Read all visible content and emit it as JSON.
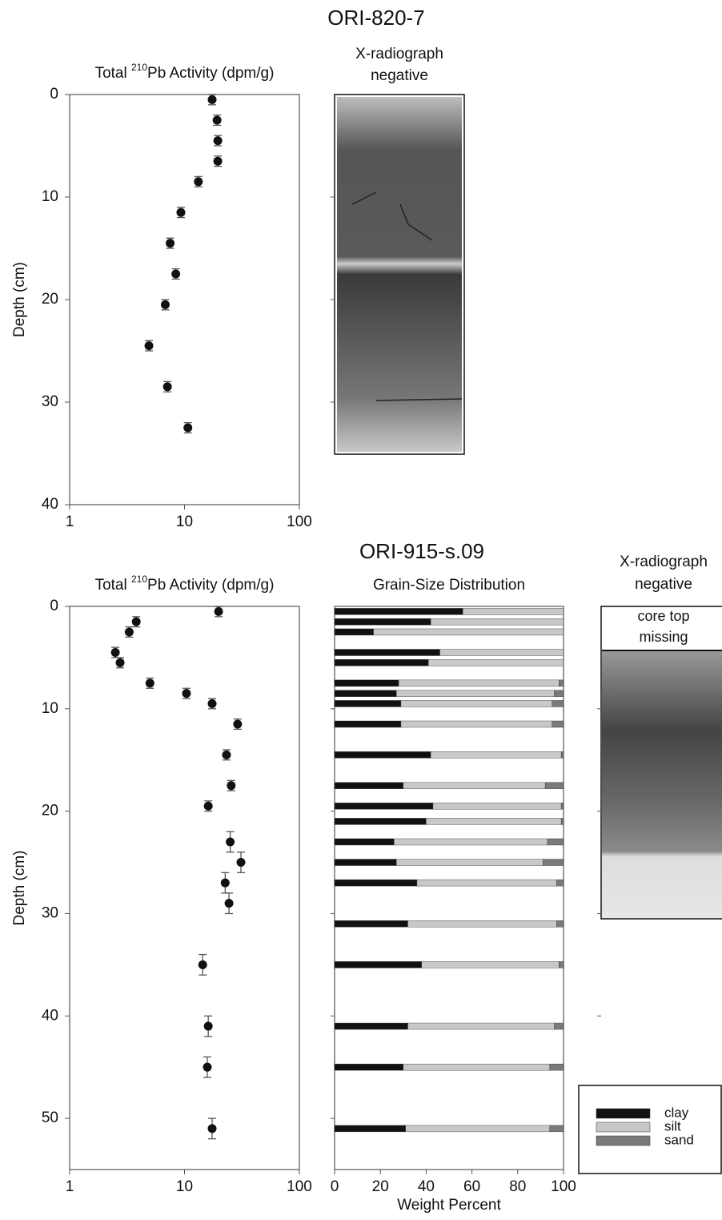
{
  "figure": {
    "top_title": "ORI-820-7",
    "bottom_title": "ORI-915-s.09",
    "top_radiograph_label": [
      "X-radiograph",
      "negative"
    ],
    "bottom_radiograph_label": [
      "X-radiograph",
      "negative"
    ],
    "core_top_note": [
      "core top",
      "missing"
    ]
  },
  "chart_data": [
    {
      "type": "scatter",
      "title": [
        "Total ",
        "210",
        "Pb Activity (dpm/g)"
      ],
      "ylabel": "Depth (cm)",
      "xscale": "log",
      "xlim": [
        1,
        100
      ],
      "xticks": [
        1,
        10,
        100
      ],
      "ylim": [
        0,
        40
      ],
      "yticks": [
        0,
        10,
        20,
        30,
        40
      ],
      "color": "#111111",
      "x": [
        17.4,
        19.2,
        19.5,
        19.5,
        13.2,
        9.3,
        7.5,
        8.4,
        6.8,
        4.9,
        7.1,
        10.7
      ],
      "y": [
        0.5,
        2.5,
        4.5,
        6.5,
        8.5,
        11.5,
        14.5,
        17.5,
        20.5,
        24.5,
        28.5,
        32.5
      ],
      "y_err": [
        0.5,
        0.5,
        0.5,
        0.5,
        0.5,
        0.5,
        0.5,
        0.5,
        0.5,
        0.5,
        0.5,
        0.5
      ]
    },
    {
      "type": "scatter",
      "title": [
        "Total ",
        "210",
        "Pb Activity (dpm/g)"
      ],
      "ylabel": "Depth (cm)",
      "xscale": "log",
      "xlim": [
        1,
        100
      ],
      "xticks": [
        1,
        10,
        100
      ],
      "ylim": [
        0,
        55
      ],
      "yticks": [
        0,
        10,
        20,
        30,
        40,
        50
      ],
      "color": "#111111",
      "x": [
        19.8,
        3.8,
        3.3,
        2.5,
        2.75,
        5.0,
        10.4,
        17.4,
        29,
        23.2,
        25.5,
        16.1,
        25,
        31,
        22.6,
        24.4,
        14.4,
        16.1,
        15.8,
        17.4
      ],
      "y": [
        0.5,
        1.5,
        2.5,
        4.5,
        5.5,
        7.5,
        8.5,
        9.5,
        11.5,
        14.5,
        17.5,
        19.5,
        23,
        25,
        27,
        29,
        35,
        41,
        45,
        51
      ],
      "y_err": [
        0.5,
        0.5,
        0.5,
        0.5,
        0.5,
        0.5,
        0.5,
        0.5,
        0.5,
        0.5,
        0.5,
        0.5,
        1,
        1,
        1,
        1,
        1,
        1,
        1,
        1
      ]
    },
    {
      "type": "stacked-bar",
      "title": "Grain-Size Distribution",
      "xlabel": "Weight Percent",
      "orientation": "horizontal",
      "xlim": [
        0,
        100
      ],
      "xticks": [
        0,
        20,
        40,
        60,
        80,
        100
      ],
      "ylim": [
        0,
        55
      ],
      "y": [
        0.5,
        1.5,
        2.5,
        4.5,
        5.5,
        7.5,
        8.5,
        9.5,
        11.5,
        14.5,
        17.5,
        19.5,
        21,
        23,
        25,
        27,
        31,
        35,
        41,
        45,
        51
      ],
      "series": [
        {
          "name": "clay",
          "color": "#111111",
          "values": [
            56,
            42,
            17,
            46,
            41,
            28,
            27,
            29,
            29,
            42,
            30,
            43,
            40,
            26,
            27,
            36,
            32,
            38,
            32,
            30,
            31
          ]
        },
        {
          "name": "silt",
          "color": "#c8c8c8",
          "values": [
            44,
            58,
            83,
            54,
            59,
            70,
            69,
            66,
            66,
            57,
            62,
            56,
            59,
            67,
            64,
            61,
            65,
            60,
            64,
            64,
            63
          ]
        },
        {
          "name": "sand",
          "color": "#7a7a7a",
          "values": [
            0,
            0,
            0,
            0,
            0,
            2,
            4,
            5,
            5,
            1,
            8,
            1,
            1,
            7,
            9,
            3,
            3,
            2,
            4,
            6,
            6
          ]
        }
      ],
      "legend": "lower-right"
    }
  ]
}
